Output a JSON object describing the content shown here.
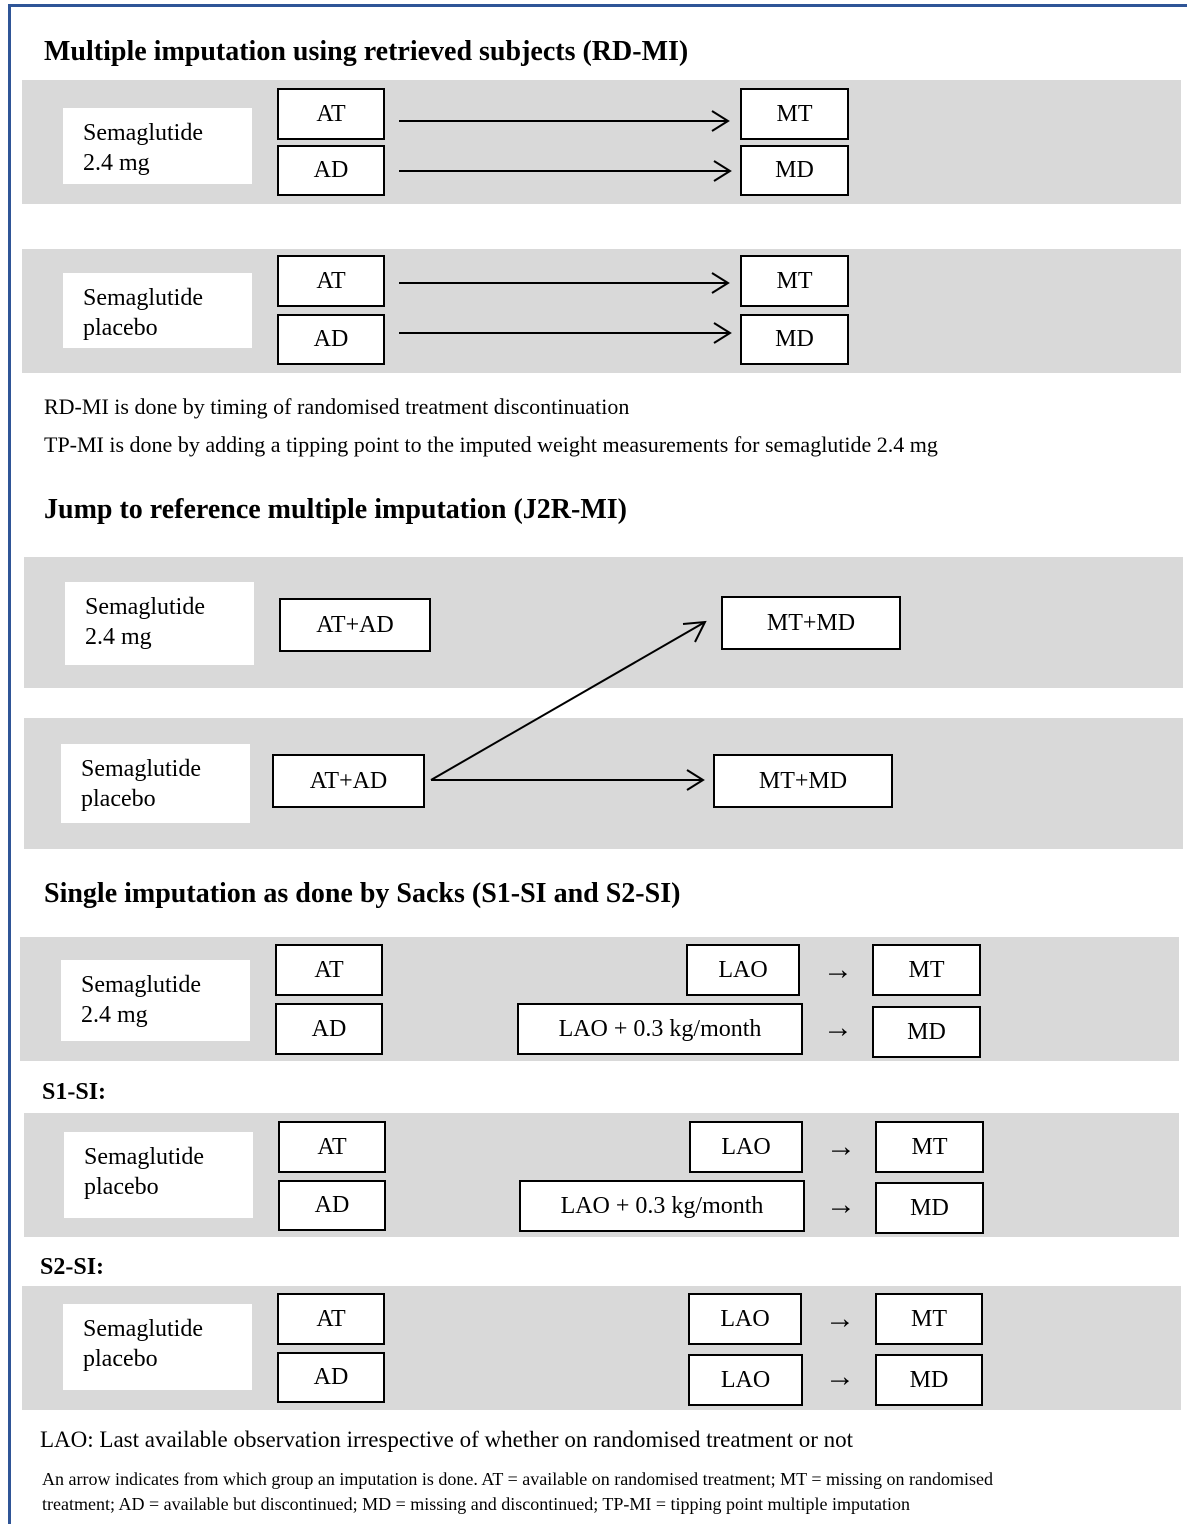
{
  "titles": {
    "rdmi": "Multiple imputation using retrieved subjects (RD-MI)",
    "j2r": "Jump to reference multiple imputation (J2R-MI)",
    "sacks": "Single imputation as done by Sacks (S1-SI and S2-SI)"
  },
  "labels": {
    "sema_line1": "Semaglutide",
    "dose_line2": "2.4 mg",
    "placebo_line2": "placebo"
  },
  "boxes": {
    "at": "AT",
    "ad": "AD",
    "mt": "MT",
    "md": "MD",
    "at_ad": "AT+AD",
    "mt_md": "MT+MD",
    "lao": "LAO",
    "lao_plus": "LAO + 0.3 kg/month"
  },
  "notes": {
    "rdmi_timing": "RD-MI is done by timing of randomised treatment discontinuation",
    "tpmi": "TP-MI is done by adding a tipping point to the imputed weight measurements for semaglutide 2.4 mg",
    "lao_def": "LAO: Last available observation irrespective of whether on randomised treatment or not",
    "footnote_line1": "An arrow indicates from which group an imputation is done. AT = available on randomised treatment; MT = missing on randomised",
    "footnote_line2": "treatment; AD = available but discontinued; MD = missing and discontinued; TP-MI = tipping point multiple imputation"
  },
  "sublabels": {
    "s1": "S1-SI:",
    "s2": "S2-SI:"
  },
  "arrow_glyph": "→",
  "colors": {
    "band": "#d9d9d9",
    "frame": "#2f5597"
  }
}
